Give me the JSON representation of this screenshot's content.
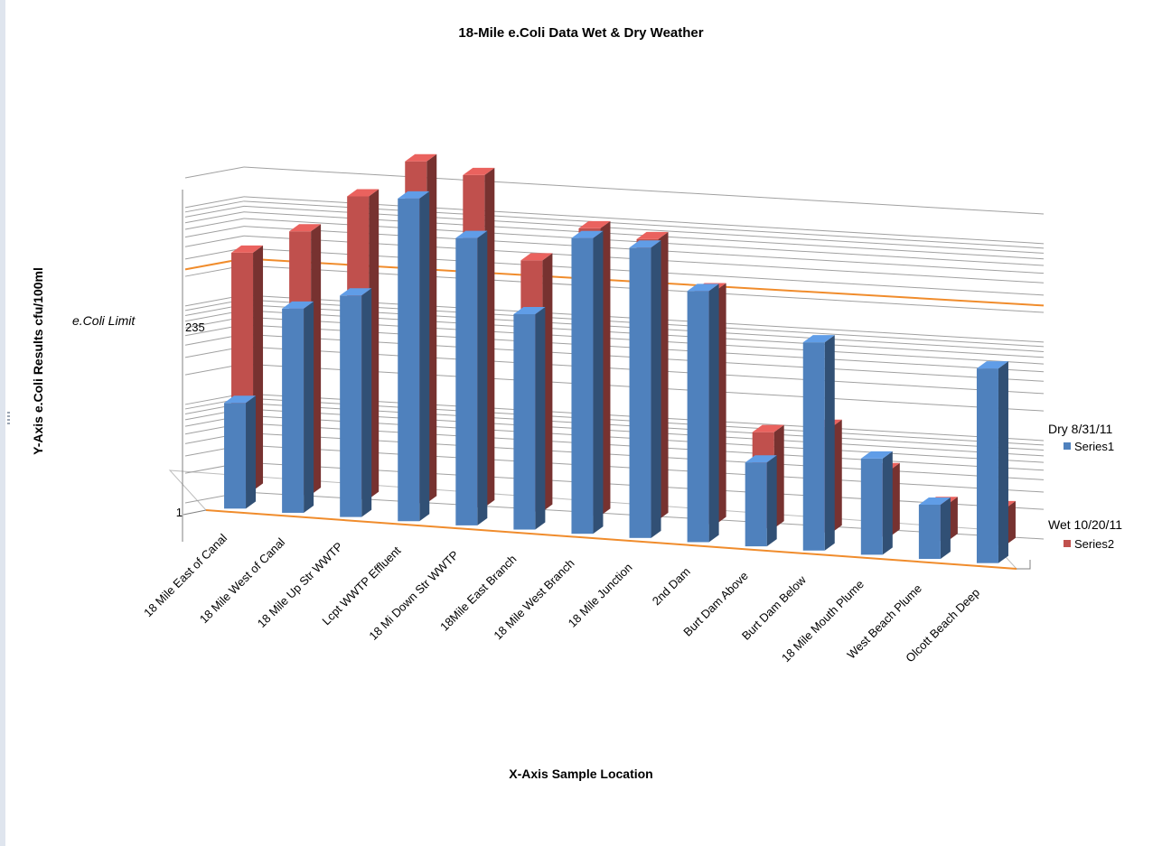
{
  "chart_data": {
    "type": "bar",
    "title": "18-Mile e.Coli Data Wet & Dry Weather",
    "xlabel": "X-Axis  Sample Location",
    "ylabel": "Y-Axis  e.Coli Results    cfu/100ml",
    "y_ticks": [
      "1",
      "235"
    ],
    "scale": "log",
    "ylim": [
      1,
      2000
    ],
    "gridlines": true,
    "three_d": true,
    "legend_position": "right",
    "reference_line": {
      "label": "e.Coli Limit",
      "value": 235,
      "color": "#f08c2c"
    },
    "categories": [
      "18 Mile East of Canal",
      "18 Mile West of Canal",
      "18 Mile Up Str WWTP",
      "Lcpt WWTP Effluent",
      "18 Mi Down Str WWTP",
      "18Mile East Branch",
      "18 Mile West Branch",
      "18 Mile Junction",
      "2nd Dam",
      "Burt Dam Above",
      "Burt Dam Below",
      "18 Mile Mouth Plume",
      "West Beach Plume",
      "Olcott Beach Deep"
    ],
    "series": [
      {
        "name": "Series1",
        "group_label": "Dry 8/31/11",
        "color": "#4f81bd",
        "values": [
          10,
          100,
          150,
          1600,
          700,
          130,
          850,
          750,
          300,
          6,
          110,
          8,
          3,
          80
        ]
      },
      {
        "name": "Series2",
        "group_label": "Wet 10/20/11",
        "color": "#c0504d",
        "values": [
          220,
          400,
          1000,
          2500,
          2000,
          300,
          700,
          600,
          200,
          8,
          10,
          4,
          2,
          2
        ]
      }
    ]
  }
}
